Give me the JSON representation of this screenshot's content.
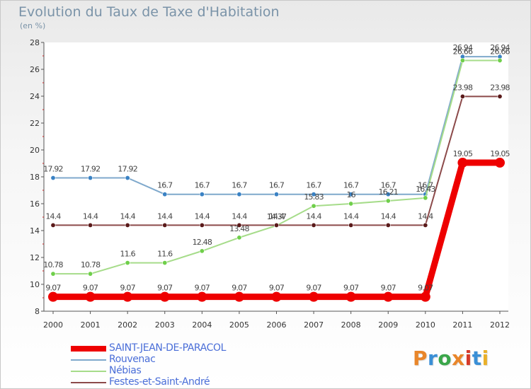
{
  "title": "Evolution du Taux de Taxe d'Habitation",
  "subtitle": "(en %)",
  "logo": {
    "text": "Proxiti",
    "letter_colors": [
      "#e9862a",
      "#3a8fd6",
      "#3aa64a",
      "#e9862a",
      "#d63a2a",
      "#3a8fd6",
      "#e9b02a"
    ]
  },
  "chart_data": {
    "type": "line",
    "title": "Evolution du Taux de Taxe d'Habitation",
    "ylabel": "(en %)",
    "xlabel": "",
    "ylim": [
      8,
      28
    ],
    "yticks": [
      8,
      10,
      12,
      14,
      16,
      18,
      20,
      22,
      24,
      26,
      28
    ],
    "grid": false,
    "legend_position": "bottom-left",
    "x": [
      "2000",
      "2001",
      "2002",
      "2003",
      "2004",
      "2005",
      "2006",
      "2007",
      "2008",
      "2009",
      "2010",
      "2011",
      "2012"
    ],
    "series": [
      {
        "name": "Rouvenac",
        "color": "#7fa9cc",
        "marker_color": "#3a82c4",
        "values": [
          17.92,
          17.92,
          17.92,
          16.7,
          16.7,
          16.7,
          16.7,
          16.7,
          16.7,
          16.7,
          16.7,
          26.94,
          26.94
        ],
        "labels": [
          "17.92",
          "17.92",
          "17.92",
          "16.7",
          "16.7",
          "16.7",
          "16.7",
          "16.7",
          "16.7",
          "16.7",
          "16.7",
          "26.94",
          "26.94"
        ]
      },
      {
        "name": "Nébias",
        "color": "#a6dc8a",
        "marker_color": "#6fcf4a",
        "values": [
          10.78,
          10.78,
          11.6,
          11.6,
          12.48,
          13.48,
          14.37,
          15.83,
          16,
          16.21,
          16.43,
          26.66,
          26.66
        ],
        "labels": [
          "10.78",
          "10.78",
          "11.6",
          "11.6",
          "12.48",
          "13.48",
          "14.37",
          "15.83",
          "16",
          "16.21",
          "16.43",
          "26.66",
          "26.66"
        ]
      },
      {
        "name": "Festes-et-Saint-André",
        "color": "#8c4a4a",
        "marker_color": "#5a1a1a",
        "values": [
          14.4,
          14.4,
          14.4,
          14.4,
          14.4,
          14.4,
          14.4,
          14.4,
          14.4,
          14.4,
          14.4,
          23.98,
          23.98
        ],
        "labels": [
          "14.4",
          "14.4",
          "14.4",
          "14.4",
          "14.4",
          "14.4",
          "14.4",
          "14.4",
          "14.4",
          "14.4",
          "14.4",
          "23.98",
          "23.98"
        ]
      },
      {
        "name": "SAINT-JEAN-DE-PARACOL",
        "color": "#ee0000",
        "marker_color": "#ee0000",
        "values": [
          9.07,
          9.07,
          9.07,
          9.07,
          9.07,
          9.07,
          9.07,
          9.07,
          9.07,
          9.07,
          9.07,
          19.05,
          19.05
        ],
        "labels": [
          "9.07",
          "9.07",
          "9.07",
          "9.07",
          "9.07",
          "9.07",
          "9.07",
          "9.07",
          "9.07",
          "9.07",
          "9.07",
          "19.05",
          "19.05"
        ],
        "highlight": true
      }
    ],
    "legend_order": [
      "SAINT-JEAN-DE-PARACOL",
      "Rouvenac",
      "Nébias",
      "Festes-et-Saint-André"
    ]
  }
}
